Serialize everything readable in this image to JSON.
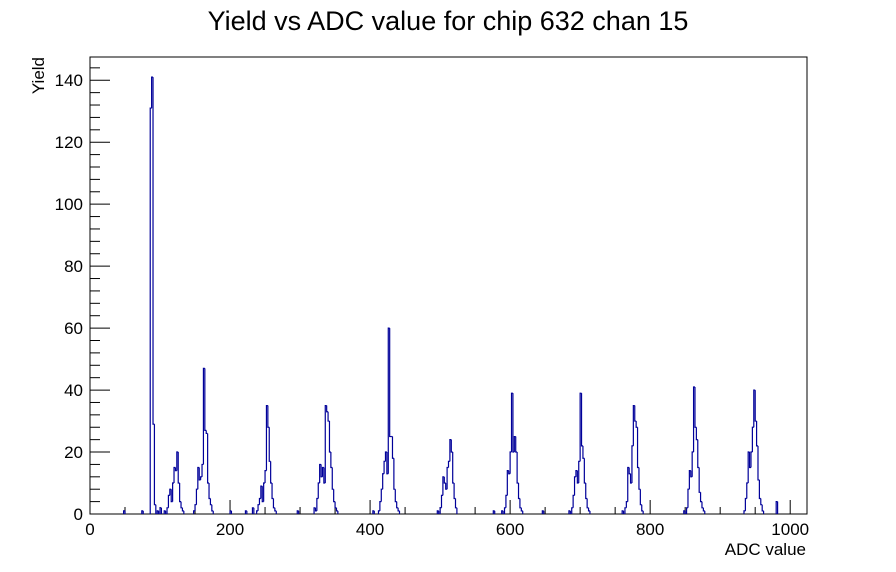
{
  "chart_data": {
    "type": "bar",
    "title": "Yield vs ADC value for chip 632 chan 15",
    "xlabel": "ADC value",
    "ylabel": "Yield",
    "xlim": [
      0,
      1024
    ],
    "ylim": [
      0,
      147.5
    ],
    "xticks": [
      0,
      200,
      400,
      600,
      800,
      1000
    ],
    "yticks": [
      0,
      20,
      40,
      60,
      80,
      100,
      120,
      140
    ],
    "line_color": "#000099",
    "bin_width": 2,
    "series": [
      {
        "bins": [
          [
            48,
            1
          ],
          [
            74,
            1
          ],
          [
            86,
            131
          ],
          [
            88,
            141
          ],
          [
            90,
            29
          ],
          [
            92,
            3
          ],
          [
            96,
            1
          ],
          [
            100,
            2
          ],
          [
            106,
            1
          ],
          [
            110,
            2
          ],
          [
            112,
            6
          ],
          [
            114,
            8
          ],
          [
            116,
            4
          ],
          [
            118,
            10
          ],
          [
            120,
            15
          ],
          [
            122,
            14
          ],
          [
            124,
            20
          ],
          [
            126,
            10
          ],
          [
            128,
            4
          ],
          [
            130,
            2
          ],
          [
            132,
            1
          ],
          [
            148,
            1
          ],
          [
            150,
            3
          ],
          [
            152,
            8
          ],
          [
            154,
            15
          ],
          [
            156,
            11
          ],
          [
            158,
            12
          ],
          [
            160,
            16
          ],
          [
            162,
            47
          ],
          [
            164,
            27
          ],
          [
            166,
            26
          ],
          [
            168,
            10
          ],
          [
            170,
            5
          ],
          [
            172,
            3
          ],
          [
            174,
            1
          ],
          [
            200,
            1
          ],
          [
            222,
            1
          ],
          [
            232,
            2
          ],
          [
            238,
            1
          ],
          [
            240,
            3
          ],
          [
            242,
            5
          ],
          [
            244,
            9
          ],
          [
            246,
            4
          ],
          [
            248,
            10
          ],
          [
            250,
            14
          ],
          [
            252,
            35
          ],
          [
            254,
            28
          ],
          [
            256,
            17
          ],
          [
            258,
            10
          ],
          [
            260,
            5
          ],
          [
            262,
            2
          ],
          [
            264,
            1
          ],
          [
            296,
            1
          ],
          [
            320,
            2
          ],
          [
            322,
            1
          ],
          [
            324,
            5
          ],
          [
            326,
            10
          ],
          [
            328,
            16
          ],
          [
            330,
            12
          ],
          [
            332,
            15
          ],
          [
            334,
            10
          ],
          [
            336,
            35
          ],
          [
            338,
            33
          ],
          [
            340,
            30
          ],
          [
            342,
            20
          ],
          [
            344,
            15
          ],
          [
            346,
            8
          ],
          [
            348,
            4
          ],
          [
            350,
            2
          ],
          [
            352,
            1
          ],
          [
            404,
            1
          ],
          [
            412,
            1
          ],
          [
            414,
            4
          ],
          [
            416,
            8
          ],
          [
            418,
            13
          ],
          [
            420,
            17
          ],
          [
            422,
            20
          ],
          [
            424,
            13
          ],
          [
            426,
            60
          ],
          [
            428,
            25
          ],
          [
            430,
            25
          ],
          [
            432,
            18
          ],
          [
            434,
            8
          ],
          [
            436,
            4
          ],
          [
            438,
            2
          ],
          [
            440,
            1
          ],
          [
            496,
            1
          ],
          [
            500,
            2
          ],
          [
            502,
            6
          ],
          [
            504,
            12
          ],
          [
            506,
            10
          ],
          [
            508,
            8
          ],
          [
            510,
            15
          ],
          [
            512,
            17
          ],
          [
            514,
            24
          ],
          [
            516,
            20
          ],
          [
            518,
            10
          ],
          [
            520,
            5
          ],
          [
            522,
            2
          ],
          [
            576,
            1
          ],
          [
            588,
            1
          ],
          [
            592,
            2
          ],
          [
            594,
            6
          ],
          [
            596,
            14
          ],
          [
            598,
            13
          ],
          [
            600,
            20
          ],
          [
            602,
            39
          ],
          [
            604,
            20
          ],
          [
            606,
            25
          ],
          [
            608,
            20
          ],
          [
            610,
            10
          ],
          [
            612,
            5
          ],
          [
            614,
            2
          ],
          [
            616,
            1
          ],
          [
            646,
            1
          ],
          [
            684,
            1
          ],
          [
            688,
            2
          ],
          [
            690,
            6
          ],
          [
            692,
            12
          ],
          [
            694,
            14
          ],
          [
            696,
            10
          ],
          [
            698,
            17
          ],
          [
            700,
            39
          ],
          [
            702,
            22
          ],
          [
            704,
            18
          ],
          [
            706,
            10
          ],
          [
            708,
            5
          ],
          [
            710,
            2
          ],
          [
            712,
            1
          ],
          [
            760,
            1
          ],
          [
            764,
            2
          ],
          [
            766,
            4
          ],
          [
            768,
            15
          ],
          [
            770,
            13
          ],
          [
            772,
            10
          ],
          [
            774,
            22
          ],
          [
            776,
            35
          ],
          [
            778,
            30
          ],
          [
            780,
            28
          ],
          [
            782,
            15
          ],
          [
            784,
            8
          ],
          [
            786,
            3
          ],
          [
            788,
            1
          ],
          [
            848,
            1
          ],
          [
            852,
            2
          ],
          [
            854,
            8
          ],
          [
            856,
            14
          ],
          [
            858,
            12
          ],
          [
            860,
            20
          ],
          [
            862,
            41
          ],
          [
            864,
            28
          ],
          [
            866,
            24
          ],
          [
            868,
            15
          ],
          [
            870,
            7
          ],
          [
            872,
            4
          ],
          [
            874,
            2
          ],
          [
            876,
            1
          ],
          [
            934,
            1
          ],
          [
            936,
            5
          ],
          [
            938,
            10
          ],
          [
            940,
            20
          ],
          [
            942,
            15
          ],
          [
            944,
            20
          ],
          [
            946,
            28
          ],
          [
            948,
            40
          ],
          [
            950,
            30
          ],
          [
            952,
            22
          ],
          [
            954,
            11
          ],
          [
            956,
            5
          ],
          [
            958,
            3
          ],
          [
            960,
            1
          ],
          [
            980,
            4
          ]
        ]
      }
    ]
  }
}
